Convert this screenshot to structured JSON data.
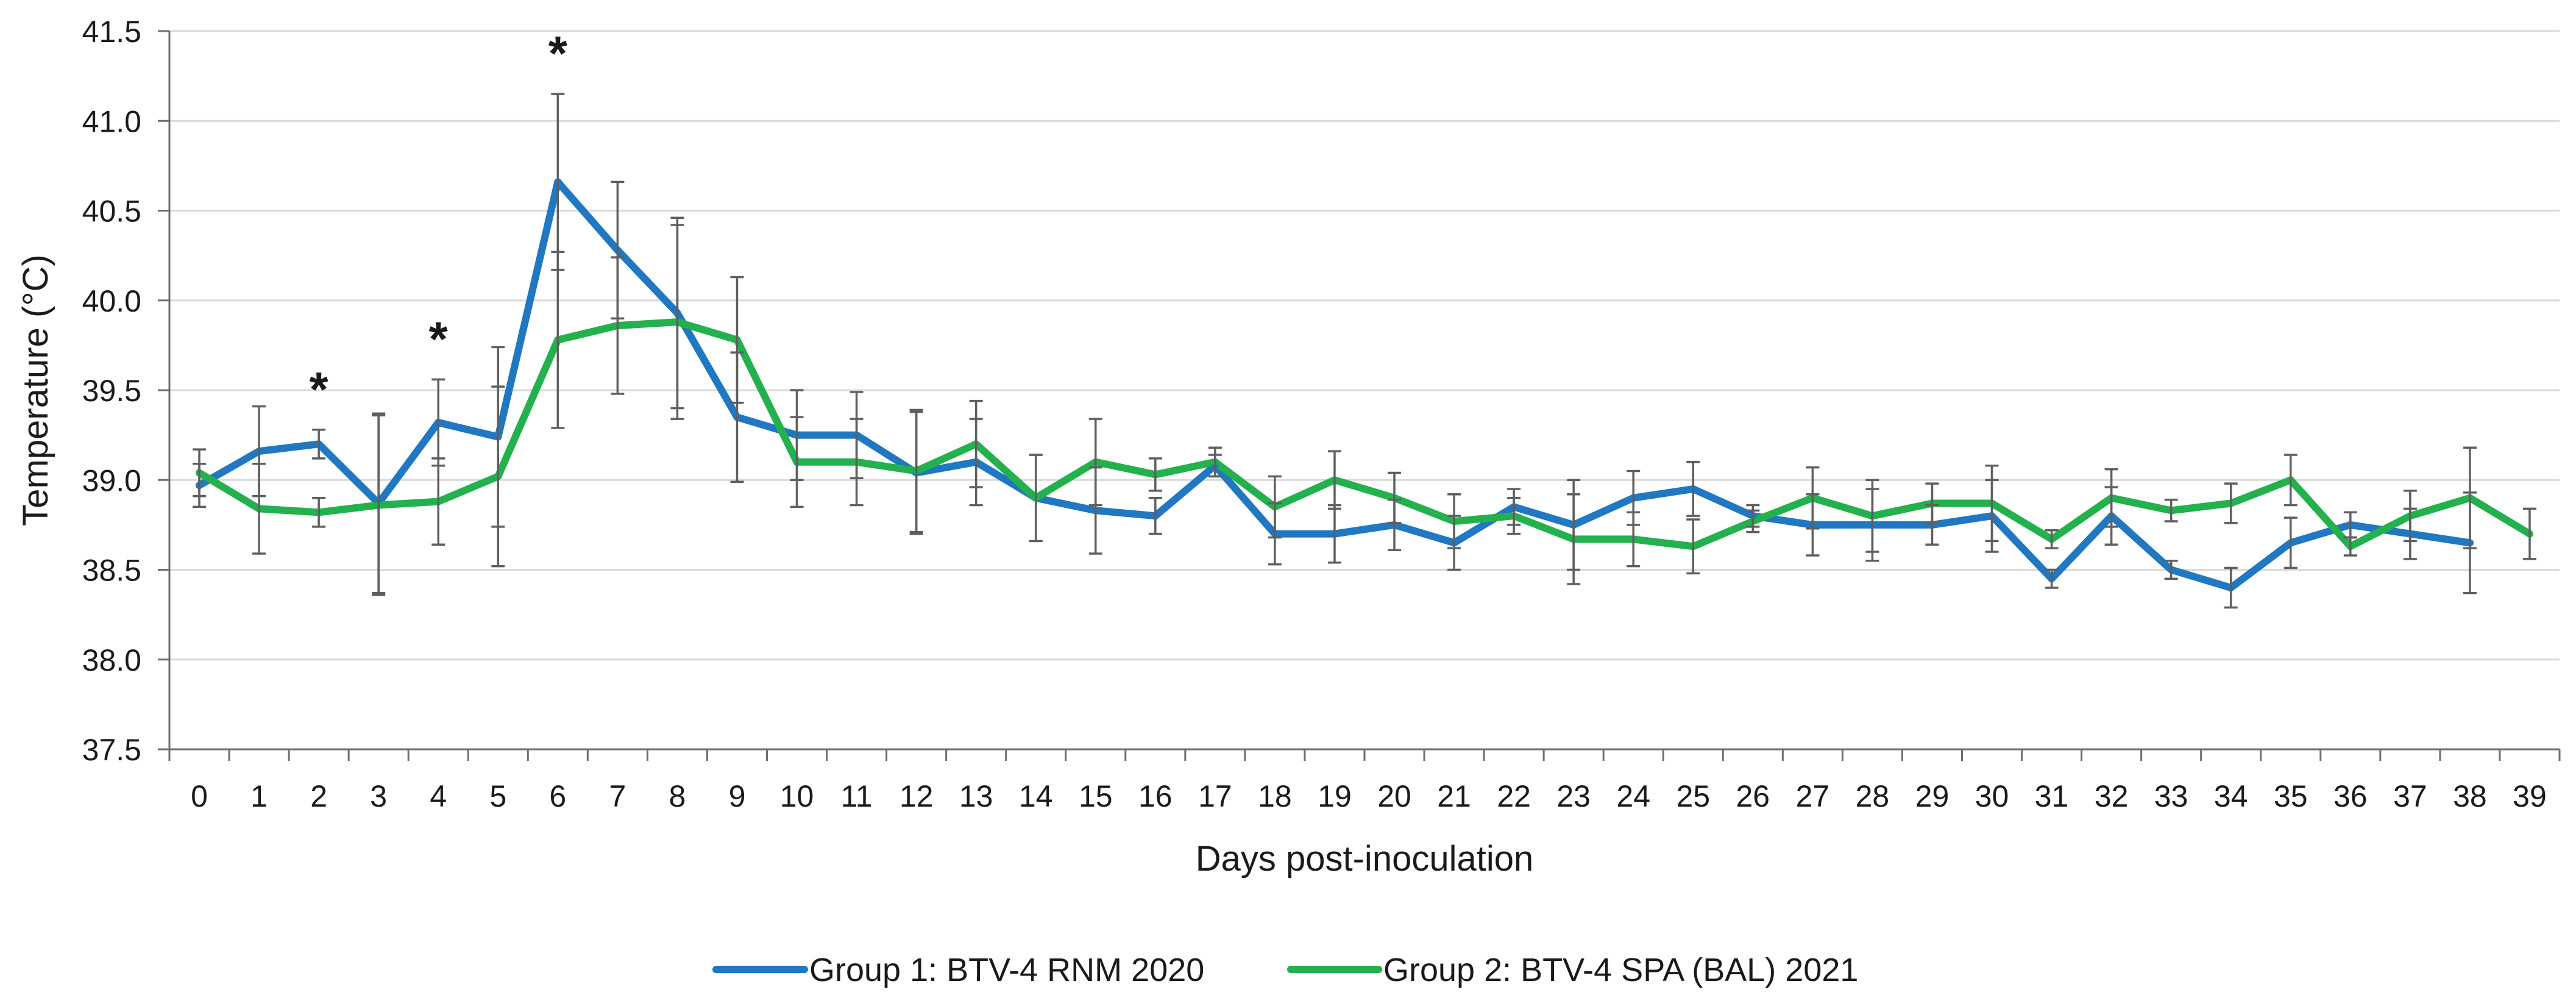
{
  "chart_data": {
    "type": "line",
    "xlabel": "Days post-inoculation",
    "ylabel": "Temperature (°C)",
    "ylim": [
      37.5,
      41.5
    ],
    "y_ticks": [
      "37.5",
      "38.0",
      "38.5",
      "39.0",
      "39.5",
      "40.0",
      "40.5",
      "41.0",
      "41.5"
    ],
    "categories": [
      "0",
      "1",
      "2",
      "3",
      "4",
      "5",
      "6",
      "7",
      "8",
      "9",
      "10",
      "11",
      "12",
      "13",
      "14",
      "15",
      "16",
      "17",
      "18",
      "19",
      "20",
      "21",
      "22",
      "23",
      "24",
      "25",
      "26",
      "27",
      "28",
      "29",
      "30",
      "31",
      "32",
      "33",
      "34",
      "35",
      "36",
      "37",
      "38",
      "39"
    ],
    "grid": true,
    "legend_position": "bottom",
    "series": [
      {
        "name": "Group 1: BTV-4 RNM 2020",
        "color": "#1F78C1",
        "values": [
          38.97,
          39.16,
          39.2,
          38.87,
          39.32,
          39.24,
          40.66,
          40.28,
          39.93,
          39.35,
          39.25,
          39.25,
          39.04,
          39.1,
          38.9,
          38.83,
          38.8,
          39.08,
          38.7,
          38.7,
          38.75,
          38.65,
          38.85,
          38.75,
          38.9,
          38.95,
          38.8,
          38.75,
          38.75,
          38.75,
          38.8,
          38.45,
          38.8,
          38.5,
          38.4,
          38.65,
          38.75,
          38.7,
          38.65,
          null
        ],
        "errors": [
          0.12,
          0.25,
          0.08,
          0.5,
          0.24,
          0.5,
          0.49,
          0.38,
          0.53,
          0.36,
          0.25,
          0.24,
          0.34,
          0.24,
          0.24,
          0.24,
          0.1,
          0.06,
          0.17,
          0.16,
          0.14,
          0.15,
          0.1,
          0.25,
          0.15,
          0.15,
          0.06,
          0.17,
          0.2,
          0.11,
          0.2,
          0.05,
          0.16,
          0.05,
          0.11,
          0.14,
          0.07,
          0.14,
          0.28,
          null
        ]
      },
      {
        "name": "Group 2: BTV-4 SPA (BAL) 2021",
        "color": "#22B14C",
        "values": [
          39.04,
          38.84,
          38.82,
          38.86,
          38.88,
          39.02,
          39.78,
          39.86,
          39.88,
          39.78,
          39.1,
          39.1,
          39.05,
          39.2,
          38.9,
          39.1,
          39.03,
          39.1,
          38.85,
          39.0,
          38.9,
          38.77,
          38.8,
          38.67,
          38.67,
          38.63,
          38.77,
          38.9,
          38.8,
          38.87,
          38.87,
          38.67,
          38.9,
          38.83,
          38.87,
          39.0,
          38.63,
          38.8,
          38.9,
          38.7
        ],
        "errors": [
          0.13,
          0.25,
          0.08,
          0.5,
          0.24,
          0.5,
          0.49,
          0.38,
          0.54,
          0.35,
          0.25,
          0.24,
          0.34,
          0.24,
          0.24,
          0.24,
          0.09,
          0.08,
          0.17,
          0.16,
          0.14,
          0.15,
          0.1,
          0.25,
          0.15,
          0.15,
          0.06,
          0.17,
          0.2,
          0.11,
          0.21,
          0.05,
          0.16,
          0.06,
          0.11,
          0.14,
          0.05,
          0.14,
          0.28,
          0.14
        ]
      }
    ],
    "annotations": [
      {
        "x": 2,
        "text": "*"
      },
      {
        "x": 4,
        "text": "*"
      },
      {
        "x": 6,
        "text": "*"
      }
    ]
  }
}
